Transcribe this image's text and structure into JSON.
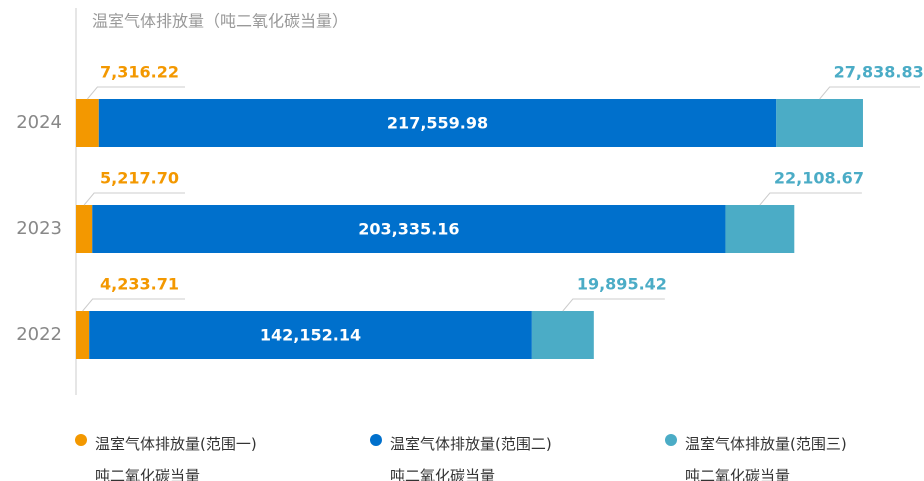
{
  "chart_data": {
    "type": "stacked-barh",
    "title": "温室气体排放量（吨二氧化碳当量）",
    "categories": [
      "2024",
      "2023",
      "2022"
    ],
    "series": [
      {
        "name": "温室气体排放量(范围一)\n吨二氧化碳当量",
        "color": "#f39800",
        "values": [
          7316.22,
          5217.7,
          4233.71
        ],
        "value_labels": [
          "7,316.22",
          "5,217.70",
          "4,233.71"
        ]
      },
      {
        "name": "温室气体排放量(范围二)\n吨二氧化碳当量",
        "color": "#0070cc",
        "values": [
          217559.98,
          203335.16,
          142152.14
        ],
        "value_labels": [
          "217,559.98",
          "203,335.16",
          "142,152.14"
        ]
      },
      {
        "name": "温室气体排放量(范围三)\n吨二氧化碳当量",
        "color": "#4bacc6",
        "values": [
          27838.83,
          22108.67,
          19895.42
        ],
        "value_labels": [
          "27,838.83",
          "22,108.67",
          "19,895.42"
        ]
      }
    ],
    "xlim": [
      0,
      256000
    ]
  }
}
